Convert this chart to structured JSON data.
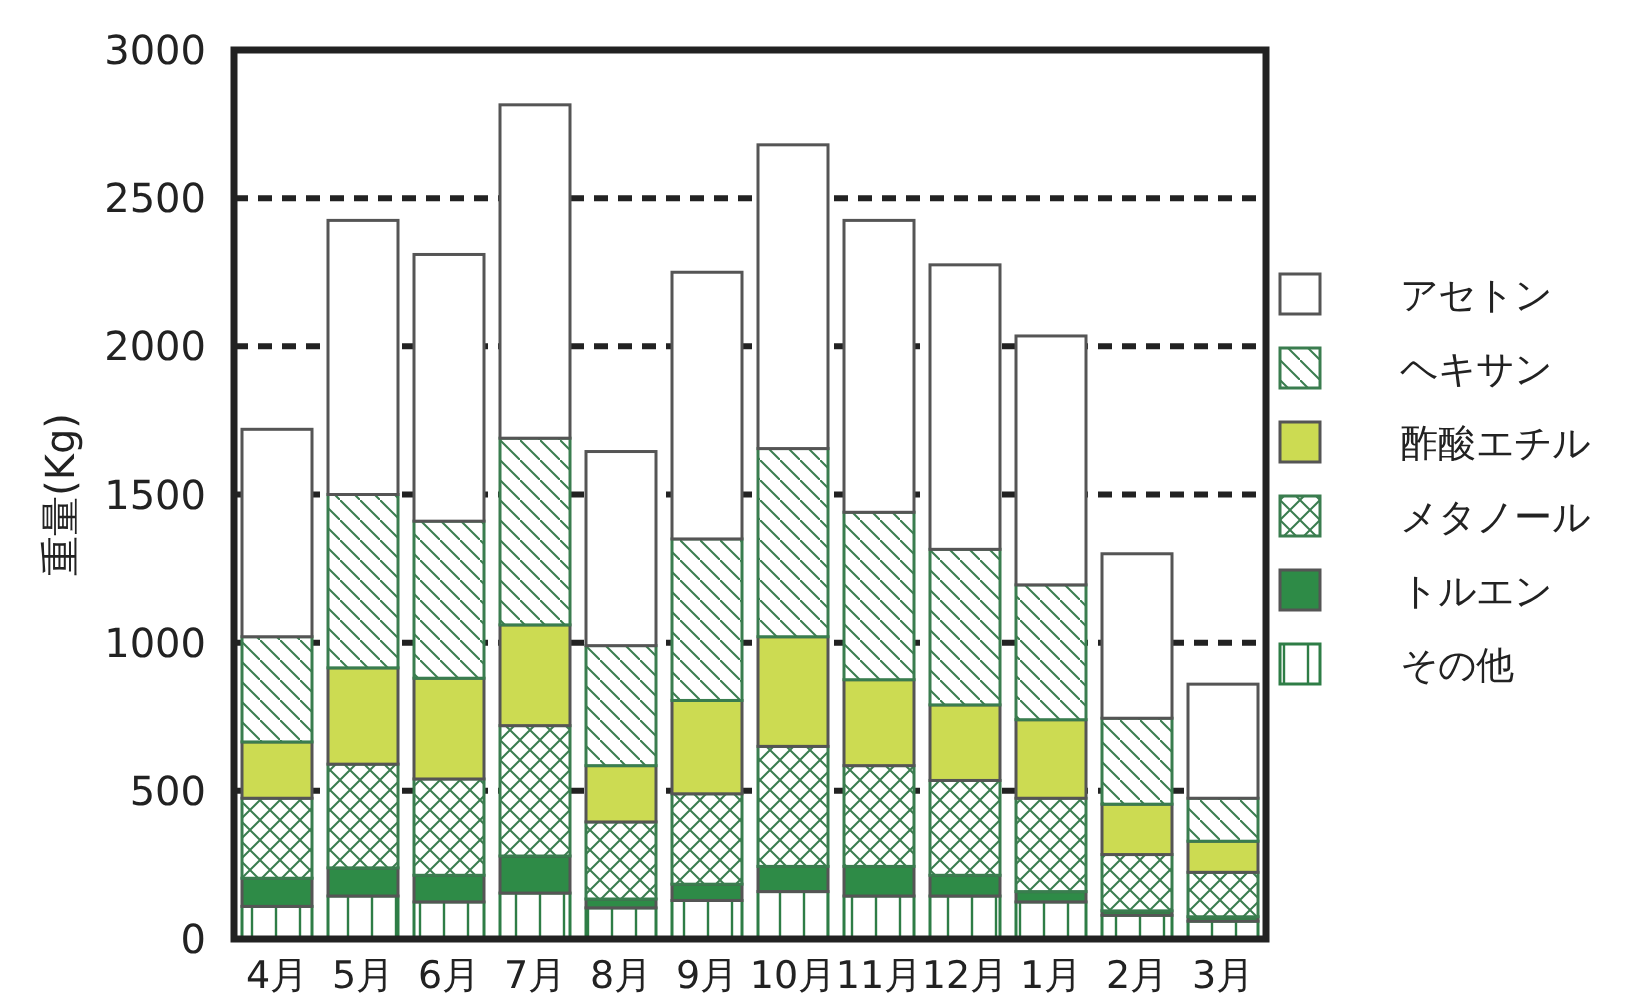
{
  "chart_data": {
    "type": "bar",
    "stacked": true,
    "ylabel": "重量(Kg)",
    "categories": [
      "4月",
      "5月",
      "6月",
      "7月",
      "8月",
      "9月",
      "10月",
      "11月",
      "12月",
      "1月",
      "2月",
      "3月"
    ],
    "ylim": [
      0,
      3000
    ],
    "yticks": [
      0,
      500,
      1000,
      1500,
      2000,
      2500,
      3000
    ],
    "grid": "y",
    "legend": "right",
    "series": [
      {
        "name": "その他",
        "color": "#2e7d46",
        "values": [
          110,
          145,
          125,
          155,
          105,
          130,
          160,
          145,
          145,
          125,
          80,
          60
        ]
      },
      {
        "name": "トルエン",
        "color": "#2e8b47",
        "values": [
          95,
          95,
          90,
          125,
          30,
          55,
          85,
          100,
          70,
          35,
          15,
          15
        ]
      },
      {
        "name": "メタノール",
        "color": "#3a7d4f",
        "values": [
          270,
          350,
          325,
          440,
          260,
          305,
          405,
          340,
          320,
          315,
          190,
          150
        ]
      },
      {
        "name": "酢酸エチル",
        "color": "#ccdb52",
        "values": [
          190,
          325,
          340,
          340,
          190,
          315,
          370,
          290,
          255,
          265,
          170,
          105
        ]
      },
      {
        "name": "ヘキサン",
        "color": "#3a7d4f",
        "values": [
          355,
          585,
          530,
          630,
          405,
          545,
          635,
          565,
          525,
          455,
          290,
          145
        ]
      },
      {
        "name": "アセトン",
        "color": "#ffffff",
        "values": [
          700,
          925,
          900,
          1125,
          655,
          900,
          1025,
          985,
          960,
          840,
          555,
          385
        ]
      }
    ]
  }
}
